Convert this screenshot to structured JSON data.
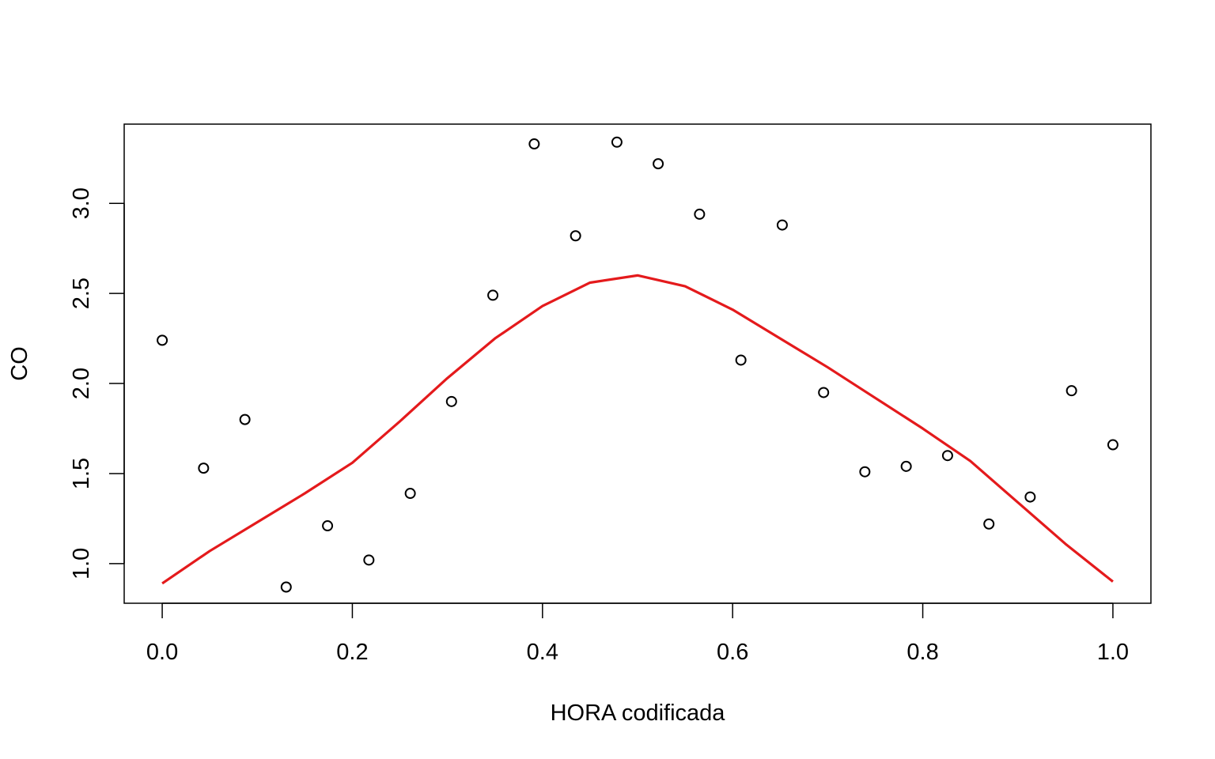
{
  "chart_data": {
    "type": "scatter",
    "title": "",
    "xlabel": "HORA codificada",
    "ylabel": "CO",
    "xlim": [
      -0.04,
      1.04
    ],
    "ylim": [
      0.78,
      3.44
    ],
    "xticks": [
      0.0,
      0.2,
      0.4,
      0.6,
      0.8,
      1.0
    ],
    "xtick_labels": [
      "0.0",
      "0.2",
      "0.4",
      "0.6",
      "0.8",
      "1.0"
    ],
    "yticks": [
      1.0,
      1.5,
      2.0,
      2.5,
      3.0
    ],
    "ytick_labels": [
      "1.0",
      "1.5",
      "2.0",
      "2.5",
      "3.0"
    ],
    "grid": false,
    "legend": "none",
    "series": [
      {
        "type": "scatter",
        "marker": "open-circle",
        "color": "#000000",
        "x": [
          0.0,
          0.0435,
          0.087,
          0.1304,
          0.1739,
          0.2174,
          0.2609,
          0.3043,
          0.3478,
          0.3913,
          0.4348,
          0.4783,
          0.5217,
          0.5652,
          0.6087,
          0.6522,
          0.6957,
          0.7391,
          0.7826,
          0.8261,
          0.8696,
          0.913,
          0.9565,
          1.0
        ],
        "y": [
          2.24,
          1.53,
          1.8,
          0.87,
          1.21,
          1.02,
          1.39,
          1.9,
          2.49,
          3.33,
          2.82,
          3.34,
          3.22,
          2.94,
          2.13,
          2.88,
          1.95,
          1.51,
          1.54,
          1.6,
          1.22,
          1.37,
          1.96,
          1.66
        ]
      },
      {
        "type": "line",
        "color": "#e41a1c",
        "x": [
          0.0,
          0.05,
          0.1,
          0.15,
          0.2,
          0.25,
          0.3,
          0.35,
          0.4,
          0.45,
          0.5,
          0.55,
          0.6,
          0.65,
          0.7,
          0.75,
          0.8,
          0.85,
          0.9,
          0.95,
          1.0
        ],
        "y": [
          0.89,
          1.07,
          1.23,
          1.39,
          1.56,
          1.79,
          2.03,
          2.25,
          2.43,
          2.56,
          2.6,
          2.54,
          2.41,
          2.25,
          2.09,
          1.92,
          1.75,
          1.57,
          1.34,
          1.11,
          0.9
        ]
      }
    ]
  }
}
